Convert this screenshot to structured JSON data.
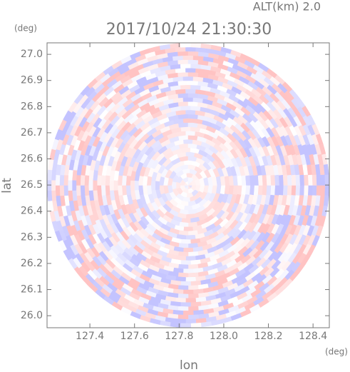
{
  "chart_data": {
    "type": "ppi",
    "title": "2017/10/24 21:30:30",
    "altitude_label": "ALT(km) 2.0",
    "xlabel": "lon",
    "ylabel": "lat",
    "xunit": "(deg)",
    "yunit": "(deg)",
    "xlim": [
      127.208,
      128.473
    ],
    "ylim": [
      25.954,
      27.044
    ],
    "xticks": [
      127.4,
      127.6,
      127.8,
      {
        "value": 128.0,
        "label": "128.0"
      },
      128.2,
      128.4
    ],
    "yticks": [
      {
        "value": 26.0,
        "label": "26.0"
      },
      26.1,
      26.2,
      26.3,
      26.4,
      26.5,
      26.6,
      26.7,
      26.8,
      26.9,
      {
        "value": 27.0,
        "label": "27.0"
      }
    ]
  }
}
